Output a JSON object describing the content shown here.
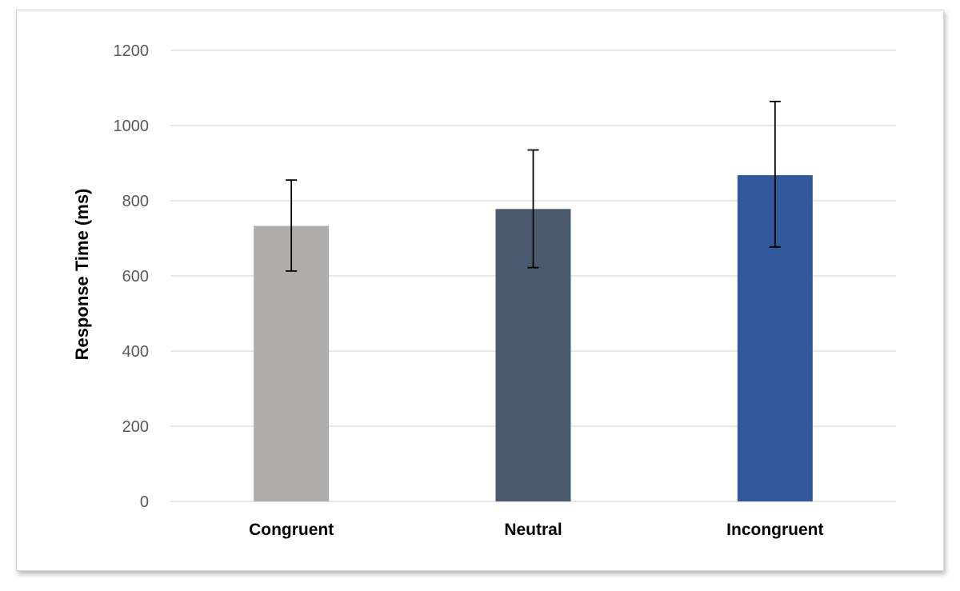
{
  "chart_data": {
    "type": "bar",
    "categories": [
      "Congruent",
      "Neutral",
      "Incongruent"
    ],
    "values": [
      733,
      778,
      868
    ],
    "error_low": [
      613,
      622,
      677
    ],
    "error_high": [
      855,
      935,
      1064
    ],
    "ylabel": "Response Time (ms)",
    "xlabel": "",
    "ylim": [
      0,
      1200
    ],
    "yticks": [
      0,
      200,
      400,
      600,
      800,
      1000,
      1200
    ],
    "ytick_labels": [
      "0",
      "200",
      "400",
      "600",
      "800",
      "1000",
      "1200"
    ],
    "grid": true,
    "legend": "none",
    "colors": [
      "#afacac",
      "#4a5a6e",
      "#30589a"
    ],
    "gridline_color": "#d9d9d9",
    "error_bar_color": "#000000"
  }
}
